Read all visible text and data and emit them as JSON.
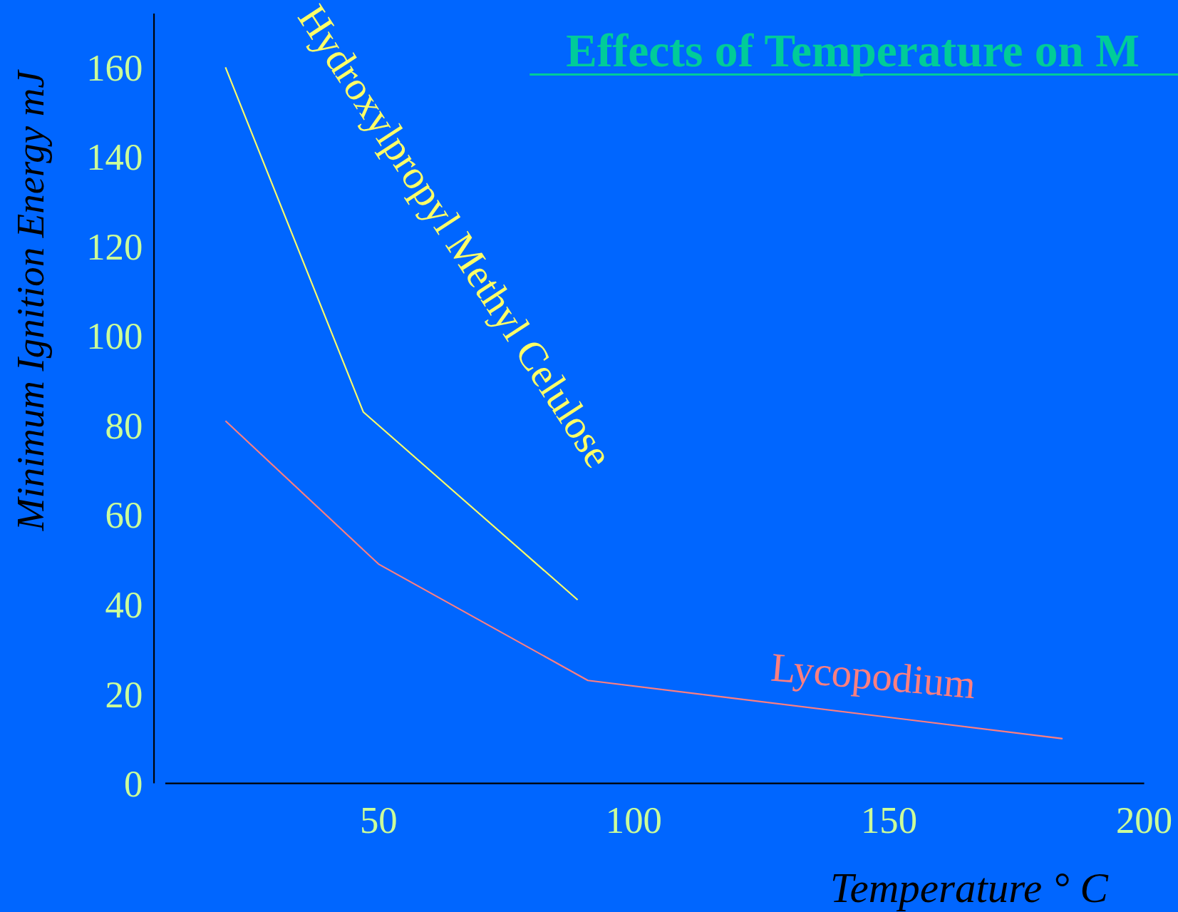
{
  "chart_data": {
    "type": "line",
    "title": "Effects of Temperature on M",
    "xlabel": "Temperature ° C",
    "ylabel": "Minimum Ignition Energy mJ",
    "xlim": [
      6,
      200
    ],
    "ylim": [
      0,
      172
    ],
    "xticks": [
      50,
      100,
      150,
      200
    ],
    "yticks": [
      0,
      20,
      40,
      60,
      80,
      100,
      120,
      140,
      160
    ],
    "marker": "none",
    "line_style": "solid",
    "series": [
      {
        "name": "Hydroxylpropyl Methyl Celulose",
        "color": "#ffff66",
        "x": [
          20,
          47,
          89
        ],
        "values": [
          160,
          83,
          41
        ]
      },
      {
        "name": "Lycopodium",
        "color": "#ff7f7f",
        "x": [
          20,
          50,
          91,
          184
        ],
        "values": [
          81,
          49,
          23,
          10
        ]
      }
    ]
  }
}
